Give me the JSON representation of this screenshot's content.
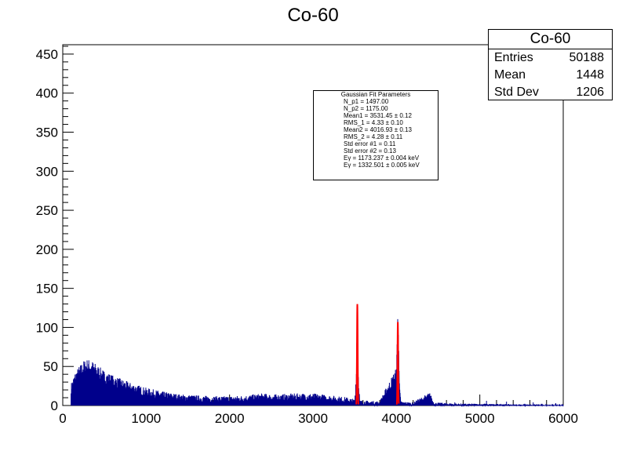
{
  "title": "Co-60",
  "stats": {
    "title": "Co-60",
    "rows": [
      {
        "label": "Entries",
        "value": "50188"
      },
      {
        "label": "Mean",
        "value": "1448"
      },
      {
        "label": "Std Dev",
        "value": "1206"
      }
    ]
  },
  "fit": {
    "title": "Gaussian Fit Parameters",
    "lines": [
      "N_p1 = 1497.00",
      "N_p2 = 1175.00",
      "Mean1 = 3531.45 ± 0.12",
      "RMS_1 = 4.33 ± 0.10",
      "Mean2 = 4016.93 ± 0.13",
      "RMS_2 = 4.28 ± 0.11",
      "Std error #1 = 0.11",
      "Std error #2 = 0.13",
      "Eγ = 1173.237 ± 0.004   keV",
      "Eγ = 1332.501 ± 0.005   keV"
    ]
  },
  "chart_data": {
    "type": "histogram",
    "title": "Co-60",
    "xlabel": "",
    "ylabel": "",
    "xlim": [
      0,
      6000
    ],
    "ylim": [
      0,
      462
    ],
    "xticks": [
      0,
      1000,
      2000,
      3000,
      4000,
      5000,
      6000
    ],
    "yticks": [
      0,
      50,
      100,
      150,
      200,
      250,
      300,
      350,
      400,
      450
    ],
    "colors": {
      "histogram": "#00008b",
      "fit": "#ff0000"
    },
    "series": [
      {
        "values": [
          [
            100,
            22
          ],
          [
            150,
            35
          ],
          [
            200,
            42
          ],
          [
            250,
            48
          ],
          [
            300,
            50
          ],
          [
            350,
            48
          ],
          [
            400,
            44
          ],
          [
            450,
            40
          ],
          [
            500,
            36
          ],
          [
            600,
            31
          ],
          [
            700,
            27
          ],
          [
            800,
            23
          ],
          [
            900,
            20
          ],
          [
            1000,
            17
          ],
          [
            1200,
            13
          ],
          [
            1400,
            10
          ],
          [
            1600,
            9
          ],
          [
            1800,
            8
          ],
          [
            2000,
            8
          ],
          [
            2200,
            9
          ],
          [
            2400,
            11
          ],
          [
            2500,
            10
          ],
          [
            2600,
            10
          ],
          [
            2800,
            11
          ],
          [
            3000,
            11
          ],
          [
            3200,
            9
          ],
          [
            3400,
            7
          ],
          [
            3500,
            5
          ],
          [
            3520,
            40
          ],
          [
            3531,
            150
          ],
          [
            3542,
            40
          ],
          [
            3560,
            4
          ],
          [
            3800,
            3
          ],
          [
            4000,
            40
          ],
          [
            4017,
            115
          ],
          [
            4034,
            40
          ],
          [
            4050,
            3
          ],
          [
            4200,
            2
          ],
          [
            4400,
            12
          ],
          [
            4450,
            2
          ],
          [
            4800,
            1
          ],
          [
            5000,
            1
          ],
          [
            6000,
            0
          ]
        ]
      },
      {
        "peaks": [
          {
            "mean": 3531.45,
            "sigma": 4.33,
            "height": 130
          },
          {
            "mean": 4016.93,
            "sigma": 4.28,
            "height": 107
          }
        ]
      }
    ]
  }
}
